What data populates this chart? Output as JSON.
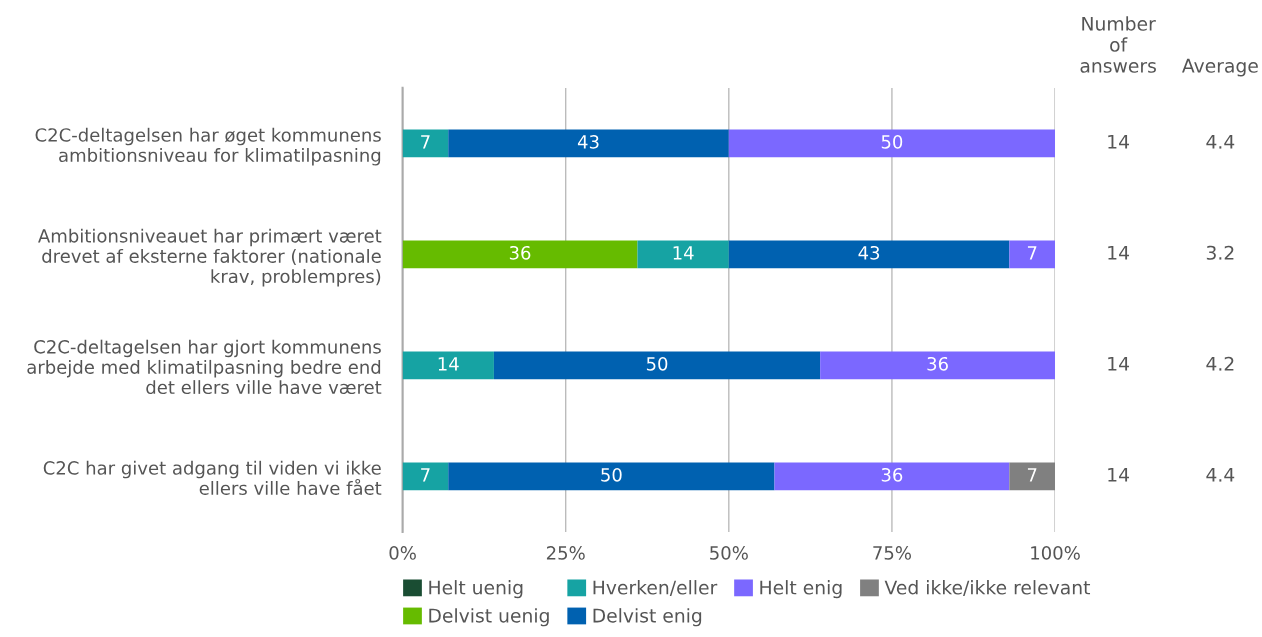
{
  "chart_data": {
    "type": "bar",
    "orientation": "horizontal",
    "stacked": true,
    "data_labels": true,
    "grid": "x",
    "legend": "bottom",
    "categories": [
      "C2C-deltagelsen har øget kommunens\nambitionsniveau for klimatilpasning",
      "Ambitionsniveauet har primært været\ndrevet af eksterne faktorer (nationale\nkrav, problempres)",
      "C2C-deltagelsen har gjort kommunens\narbejde med klimatilpasning bedre end\ndet ellers ville have været",
      "C2C har givet adgang til viden vi ikke\nellers ville have fået"
    ],
    "series": [
      {
        "name": "Helt uenig",
        "color": "#1a4d33",
        "values": [
          null,
          null,
          null,
          null
        ]
      },
      {
        "name": "Delvist uenig",
        "color": "#66bb00",
        "values": [
          null,
          36,
          null,
          null
        ]
      },
      {
        "name": "Hverken/eller",
        "color": "#16a3a3",
        "values": [
          7,
          14,
          14,
          7
        ]
      },
      {
        "name": "Delvist enig",
        "color": "#0061b0",
        "values": [
          43,
          43,
          50,
          50
        ]
      },
      {
        "name": "Helt enig",
        "color": "#7b68ff",
        "values": [
          50,
          7,
          36,
          36
        ]
      },
      {
        "name": "Ved ikke/ikke relevant",
        "color": "#808080",
        "values": [
          null,
          null,
          null,
          7
        ]
      }
    ],
    "xlim": [
      0,
      100
    ],
    "xticks": [
      {
        "value": 0,
        "label": "0%"
      },
      {
        "value": 25,
        "label": "25%"
      },
      {
        "value": 50,
        "label": "50%"
      },
      {
        "value": 75,
        "label": "75%"
      },
      {
        "value": 100,
        "label": "100%"
      }
    ],
    "annotations": [
      "Number\nof\nanswers",
      "Average",
      "14",
      "4.4",
      "14",
      "3.2",
      "14",
      "4.2",
      "14",
      "4.4"
    ]
  }
}
